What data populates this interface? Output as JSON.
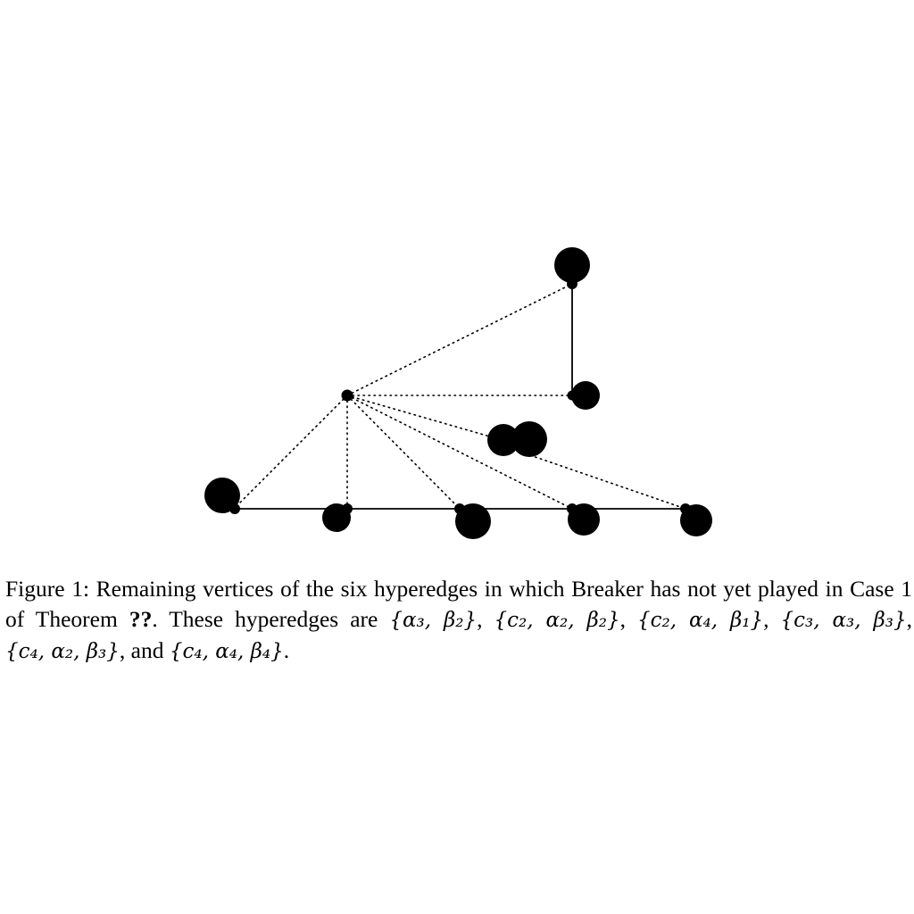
{
  "figure": {
    "vertices": [
      {
        "id": "v-top",
        "label": ""
      },
      {
        "id": "v-center",
        "label": ""
      },
      {
        "id": "v-mid-right",
        "label": ""
      },
      {
        "id": "v-cluster-a",
        "label": ""
      },
      {
        "id": "v-cluster-b",
        "label": ""
      },
      {
        "id": "v-bottom-1",
        "label": ""
      },
      {
        "id": "v-bottom-2",
        "label": ""
      },
      {
        "id": "v-bottom-3",
        "label": ""
      },
      {
        "id": "v-bottom-4",
        "label": ""
      },
      {
        "id": "v-bottom-5",
        "label": ""
      }
    ],
    "edge_styles": {
      "solid": "#000000",
      "dotted": "#000000"
    }
  },
  "caption": {
    "label": "Figure 1:",
    "text_1": "Remaining vertices of the six hyperedges in which Breaker has not yet played in Case 1 of Theorem",
    "ref": "??",
    "text_2": ". These hyperedges are",
    "sets": [
      "{α₃, β₂}",
      "{c₂, α₂, β₂}",
      "{c₂, α₄, β₁}",
      "{c₃, α₃, β₃}",
      "{c₄, α₂, β₃}",
      "{c₄, α₄, β₄}"
    ],
    "conj": "and",
    "end": "."
  }
}
